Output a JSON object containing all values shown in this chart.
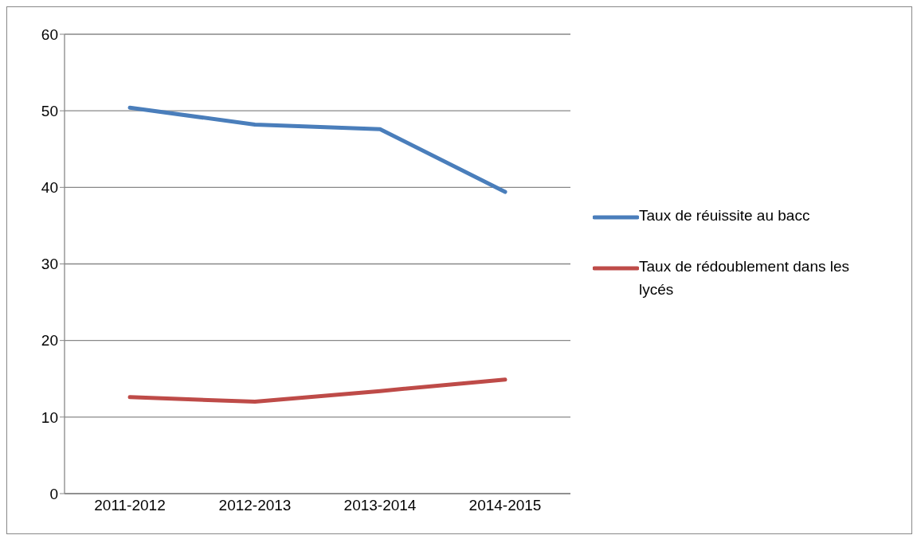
{
  "chart_data": {
    "type": "line",
    "categories": [
      "2011-2012",
      "2012-2013",
      "2013-2014",
      "2014-2015"
    ],
    "series": [
      {
        "name": "Taux de réuissite au bacc",
        "color": "#4a7ebb",
        "values": [
          50.4,
          48.2,
          47.6,
          39.4
        ]
      },
      {
        "name": "Taux de rédoublement dans les lycés",
        "color": "#be4b48",
        "values": [
          12.6,
          12.0,
          13.4,
          14.9
        ]
      }
    ],
    "ylim": [
      0,
      60
    ],
    "yticks": [
      0,
      10,
      20,
      30,
      40,
      50,
      60
    ],
    "grid": "y",
    "legend": "right",
    "marker": "none",
    "line_style": "solid"
  }
}
